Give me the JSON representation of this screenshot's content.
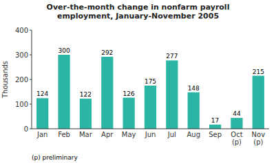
{
  "chart_data": {
    "type": "bar",
    "title": "Over-the-month change in nonfarm payroll\nemployment, January-November 2005",
    "ylabel": "Thousands",
    "annotations": [
      "(p) preliminary"
    ],
    "categories": [
      "Jan",
      "Feb",
      "Mar",
      "Apr",
      "May",
      "Jun",
      "Jul",
      "Aug",
      "Sep",
      "Oct\n(p)",
      "Nov\n(p)"
    ],
    "values": [
      124,
      300,
      122,
      292,
      126,
      175,
      277,
      148,
      17,
      44,
      215
    ],
    "color": "#2ab5a5",
    "ylim": [
      0,
      400
    ],
    "yticks": [
      0,
      100,
      200,
      300,
      400
    ],
    "data_labels": true,
    "grid": false
  }
}
